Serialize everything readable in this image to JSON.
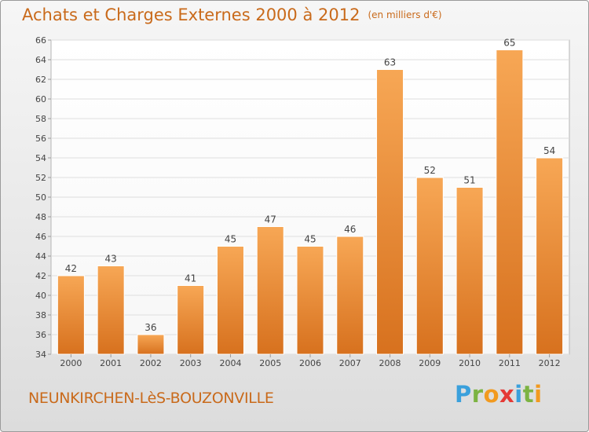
{
  "header": {
    "title": "Achats et Charges Externes 2000 à 2012",
    "subtitle": "(en milliers d'€)"
  },
  "footer": {
    "commune": "NEUNKIRCHEN-LèS-BOUZONVILLE",
    "brand_letters": [
      "P",
      "r",
      "o",
      "x",
      "i",
      "t",
      "i"
    ],
    "brand_colors": [
      "#3aa0dc",
      "#7cb342",
      "#f29a1f",
      "#e53935",
      "#3aa0dc",
      "#7cb342",
      "#f29a1f"
    ]
  },
  "chart_data": {
    "type": "bar",
    "categories": [
      "2000",
      "2001",
      "2002",
      "2003",
      "2004",
      "2005",
      "2006",
      "2007",
      "2008",
      "2009",
      "2010",
      "2011",
      "2012"
    ],
    "values": [
      42,
      43,
      36,
      41,
      45,
      47,
      45,
      46,
      63,
      52,
      51,
      65,
      54
    ],
    "data_labels": [
      "42",
      "43",
      "36",
      "41",
      "45",
      "47",
      "45",
      "46",
      "63",
      "52",
      "51",
      "65",
      "54"
    ],
    "yticks": [
      "34",
      "36",
      "38",
      "40",
      "42",
      "44",
      "46",
      "48",
      "50",
      "52",
      "54",
      "56",
      "58",
      "60",
      "62",
      "64",
      "66"
    ],
    "ylim": [
      34,
      66
    ],
    "grid": true,
    "bar_color": "#ee8f3c"
  }
}
